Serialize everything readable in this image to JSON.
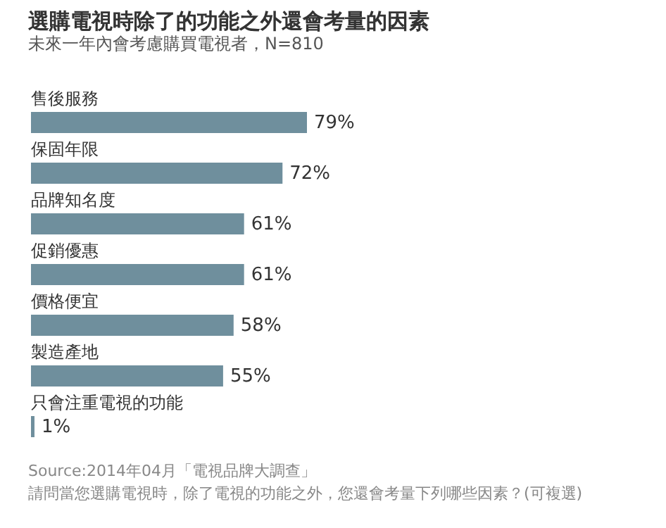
{
  "chart_data": {
    "type": "bar",
    "orientation": "horizontal",
    "title": "選購電視時除了的功能之外還會考量的因素",
    "subtitle": "未來一年內會考慮購買電視者，N=810",
    "categories": [
      "售後服務",
      "保固年限",
      "品牌知名度",
      "促銷優惠",
      "價格便宜",
      "製造產地",
      "只會注重電視的功能"
    ],
    "values": [
      79,
      72,
      61,
      61,
      58,
      55,
      1
    ],
    "value_labels": [
      "79%",
      "72%",
      "61%",
      "61%",
      "58%",
      "55%",
      "1%"
    ],
    "color": "#6f8f9d",
    "annotations": [
      "Source:2014年04月「電視品牌大調查」",
      "請問當您選購電視時，除了電視的功能之外，您還會考量下列哪些因素？(可複選)"
    ]
  }
}
